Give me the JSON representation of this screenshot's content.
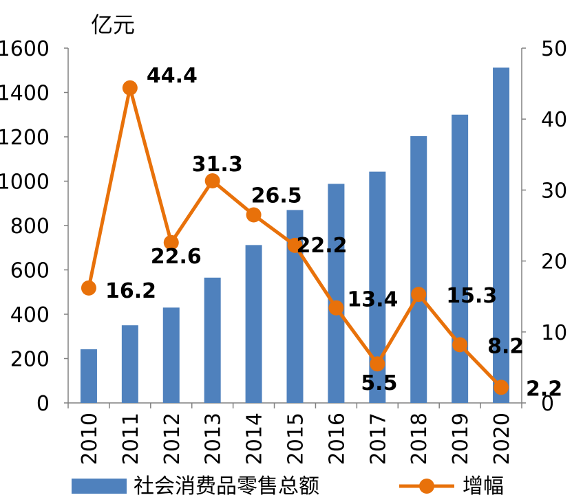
{
  "chart_data": {
    "type": "bar",
    "ylabel": "亿元",
    "categories": [
      "2010",
      "2011",
      "2012",
      "2013",
      "2014",
      "2015",
      "2016",
      "2017",
      "2018",
      "2019",
      "2020"
    ],
    "series": [
      {
        "name": "社会消费品零售总额",
        "type": "bar",
        "axis": "left",
        "color": "#4f81bd",
        "values": [
          242,
          350,
          430,
          565,
          712,
          870,
          988,
          1043,
          1203,
          1300,
          1512
        ]
      },
      {
        "name": "增幅",
        "type": "line",
        "axis": "right",
        "color": "#e8710a",
        "values": [
          16.2,
          44.4,
          22.6,
          31.3,
          26.5,
          22.2,
          13.4,
          5.5,
          15.3,
          8.2,
          2.2
        ],
        "labels": [
          "16.2",
          "44.4",
          "22.6",
          "31.3",
          "26.5",
          "22.2",
          "13.4",
          "5.5",
          "15.3",
          "8.2",
          "2.2"
        ]
      }
    ],
    "y_left": {
      "lim": [
        0,
        1600
      ],
      "ticks": [
        "0",
        "200",
        "400",
        "600",
        "800",
        "1000",
        "1200",
        "1400",
        "1600"
      ]
    },
    "y_right": {
      "lim": [
        0,
        50
      ],
      "ticks": [
        "0",
        "10",
        "20",
        "30",
        "40",
        "50"
      ]
    },
    "grid": false,
    "legend_position": "bottom"
  }
}
